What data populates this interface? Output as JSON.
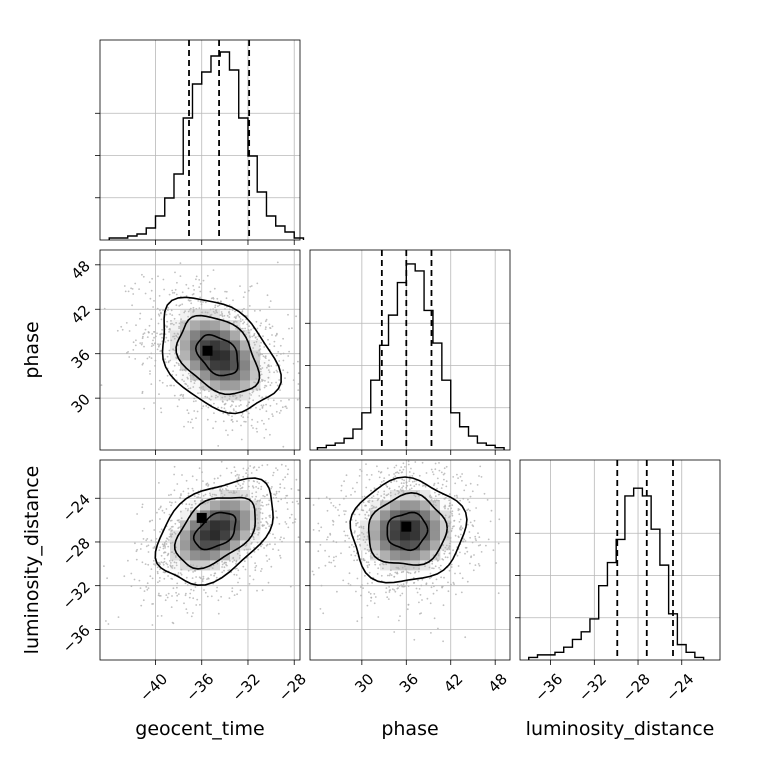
{
  "chart_data": {
    "type": "corner",
    "parameters": [
      "geocent_time",
      "phase",
      "luminosity_distance"
    ],
    "xlabels": [
      "geocent_time",
      "phase",
      "luminosity_distance"
    ],
    "ylabels": [
      "",
      "phase",
      "luminosity_distance"
    ],
    "quantile_style": "dashed",
    "grid": true,
    "point_color": "#b0b0b0",
    "line_color": "#000000",
    "ranges": {
      "geocent_time": [
        -44.8,
        -27.5
      ],
      "phase": [
        23.0,
        50.0
      ],
      "luminosity_distance": [
        -38.8,
        -20.5
      ]
    },
    "ticks": {
      "geocent_time": {
        "values": [
          -40,
          -36,
          -32,
          -28
        ],
        "labels": [
          "−40",
          "−36",
          "−32",
          "−28"
        ]
      },
      "phase": {
        "values": [
          30,
          36,
          42,
          48
        ],
        "labels": [
          "30",
          "36",
          "42",
          "48"
        ]
      },
      "luminosity_distance": {
        "values": [
          -36,
          -32,
          -28,
          -24
        ],
        "labels": [
          "−36",
          "−32",
          "−28",
          "−24"
        ]
      }
    },
    "histograms": [
      {
        "parameter": "geocent_time",
        "bin_start": -44.0,
        "bin_width": 0.8,
        "counts": [
          1,
          1,
          2,
          3,
          6,
          12,
          21,
          33,
          61,
          78,
          84,
          92,
          94,
          85,
          61,
          42,
          24,
          12,
          7,
          4,
          1
        ],
        "ymax": 100,
        "quantiles": [
          -37.1,
          -34.5,
          -31.9
        ]
      },
      {
        "parameter": "phase",
        "bin_start": 24.0,
        "bin_width": 1.2,
        "counts": [
          1,
          2,
          3,
          5,
          9,
          16,
          30,
          45,
          58,
          72,
          80,
          77,
          60,
          46,
          30,
          16,
          10,
          6,
          3,
          2,
          1
        ],
        "ymax": 86,
        "quantiles": [
          32.7,
          36.0,
          39.4
        ]
      },
      {
        "parameter": "luminosity_distance",
        "bin_start": -38.0,
        "bin_width": 0.8,
        "counts": [
          1,
          2,
          2,
          3,
          5,
          8,
          11,
          16,
          29,
          38,
          47,
          64,
          67,
          64,
          51,
          37,
          18,
          6,
          3,
          1
        ],
        "ymax": 78,
        "quantiles": [
          -29.9,
          -27.2,
          -24.8
        ]
      }
    ],
    "panels_2d": [
      {
        "x": "geocent_time",
        "y": "phase",
        "mean": [
          -34.6,
          35.8
        ],
        "sd": [
          2.9,
          4.4
        ],
        "rho": -0.35,
        "contour_levels": [
          0.12,
          0.39,
          0.86
        ],
        "peak": [
          -35.5,
          36.4
        ]
      },
      {
        "x": "geocent_time",
        "y": "luminosity_distance",
        "mean": [
          -34.8,
          -27.0
        ],
        "sd": [
          2.9,
          2.7
        ],
        "rho": 0.42,
        "contour_levels": [
          0.12,
          0.39,
          0.86
        ],
        "peak": [
          -36.0,
          -25.8
        ]
      },
      {
        "x": "phase",
        "y": "luminosity_distance",
        "mean": [
          36.1,
          -27.0
        ],
        "sd": [
          4.4,
          2.7
        ],
        "rho": 0.05,
        "contour_levels": [
          0.12,
          0.39,
          0.86
        ],
        "peak": [
          36.0,
          -26.6
        ]
      }
    ]
  }
}
